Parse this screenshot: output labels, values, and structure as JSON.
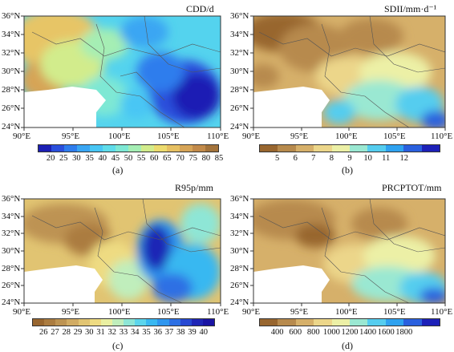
{
  "panels": [
    {
      "title": "CDD/d",
      "caption": "(a)",
      "lat_labels": [
        "36°N",
        "34°N",
        "32°N",
        "30°N",
        "28°N",
        "26°N",
        "24°N"
      ],
      "lon_labels": [
        "90°E",
        "95°E",
        "100°E",
        "105°E",
        "110°E"
      ],
      "colorbar_ticks": [
        "20",
        "25",
        "30",
        "35",
        "40",
        "45",
        "50",
        "55",
        "60",
        "65",
        "70",
        "75",
        "80",
        "85"
      ],
      "colorbar_colors": [
        "#1c1fb4",
        "#2a4fdc",
        "#2f7ded",
        "#3aa6f3",
        "#48c6f4",
        "#5fdcea",
        "#7ee8d4",
        "#a5eeb4",
        "#d2ec8c",
        "#ecdb6e",
        "#e6c062",
        "#d6a457",
        "#c28a4a",
        "#a3733b"
      ]
    },
    {
      "title": "SDII/mm·d⁻¹",
      "caption": "(b)",
      "lat_labels": [
        "36°N",
        "34°N",
        "32°N",
        "30°N",
        "28°N",
        "26°N",
        "24°N"
      ],
      "lon_labels": [
        "90°E",
        "95°E",
        "100°E",
        "105°E",
        "110°E"
      ],
      "colorbar_ticks": [
        "5",
        "6",
        "7",
        "8",
        "9",
        "10",
        "11",
        "12"
      ],
      "colorbar_colors": [
        "#98662f",
        "#b78a4d",
        "#d6b06a",
        "#ecd68a",
        "#ecf0a6",
        "#9ae8d2",
        "#55cdef",
        "#2fa2f0",
        "#2a60de",
        "#1d21b8"
      ]
    },
    {
      "title": "R95p/mm",
      "caption": "(c)",
      "lat_labels": [
        "36°N",
        "34°N",
        "32°N",
        "30°N",
        "28°N",
        "26°N",
        "24°N"
      ],
      "lon_labels": [
        "90°E",
        "95°E",
        "100°E",
        "105°E",
        "110°E"
      ],
      "colorbar_ticks": [
        "26",
        "27",
        "28",
        "29",
        "30",
        "31",
        "32",
        "33",
        "34",
        "35",
        "36",
        "37",
        "38",
        "39",
        "40"
      ],
      "colorbar_colors": [
        "#98662f",
        "#ab7c40",
        "#bd9352",
        "#d1ab63",
        "#e1c472",
        "#eedb82",
        "#eaf0a2",
        "#c0eebc",
        "#8ee6d6",
        "#5cd5ec",
        "#39b8f1",
        "#2e96ef",
        "#2d70e4",
        "#2648d2",
        "#1f26b6",
        "#1a14a4"
      ]
    },
    {
      "title": "PRCPTOT/mm",
      "caption": "(d)",
      "lat_labels": [
        "36°N",
        "34°N",
        "32°N",
        "30°N",
        "28°N",
        "26°N",
        "24°N"
      ],
      "lon_labels": [
        "90°E",
        "95°E",
        "100°E",
        "105°E",
        "110°E"
      ],
      "colorbar_ticks": [
        "400",
        "600",
        "800",
        "1000",
        "1200",
        "1400",
        "1600",
        "1800"
      ],
      "colorbar_colors": [
        "#98662f",
        "#b78a4d",
        "#d6b06a",
        "#ecd68a",
        "#ecf0a6",
        "#9ae8d2",
        "#55cdef",
        "#2fa2f0",
        "#2a60de",
        "#1d21b8"
      ]
    }
  ]
}
